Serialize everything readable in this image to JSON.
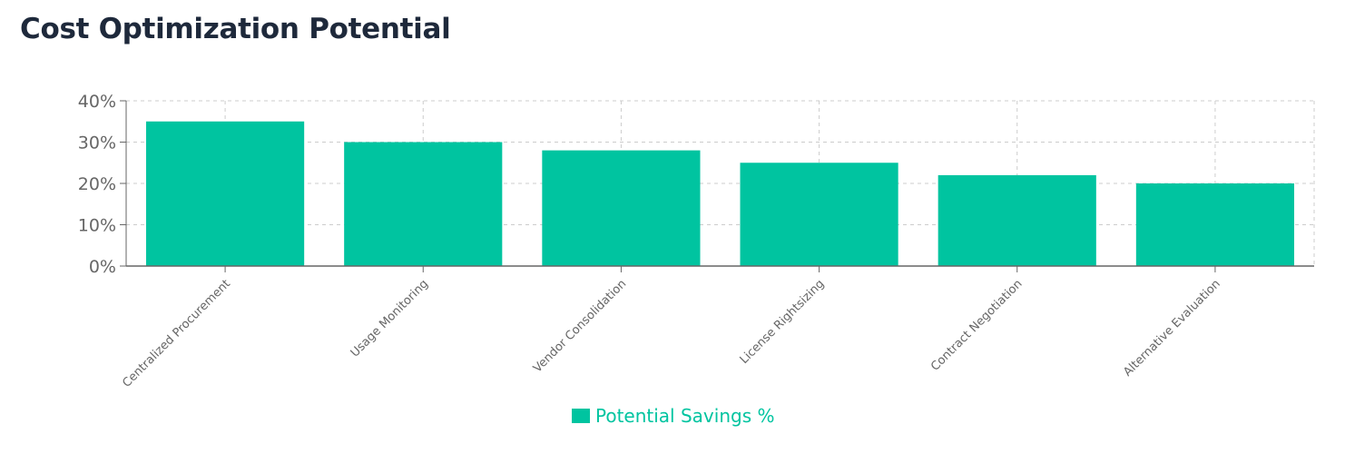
{
  "page": {
    "title": "Cost Optimization Potential"
  },
  "colors": {
    "series": "#00c4a0",
    "grid": "#cccccc",
    "axis": "#666666",
    "text": "#666666"
  },
  "chart_data": {
    "type": "bar",
    "title": "Cost Optimization Potential",
    "categories": [
      "Centralized Procurement",
      "Usage Monitoring",
      "Vendor Consolidation",
      "License Rightsizing",
      "Contract Negotiation",
      "Alternative Evaluation"
    ],
    "series": [
      {
        "name": "Potential Savings %",
        "values": [
          35,
          30,
          28,
          25,
          22,
          20
        ]
      }
    ],
    "xlabel": "",
    "ylabel": "",
    "ylim": [
      0,
      40
    ],
    "yticks": [
      "0%",
      "10%",
      "20%",
      "30%",
      "40%"
    ],
    "grid": true,
    "legend": "bottom-center"
  }
}
